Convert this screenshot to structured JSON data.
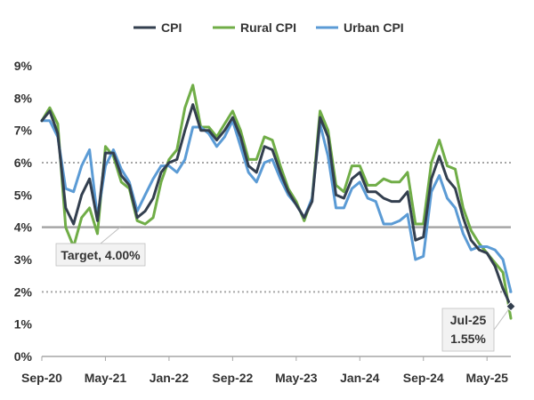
{
  "chart_data": {
    "type": "line",
    "title": "",
    "xlabel": "",
    "ylabel": "",
    "ylim": [
      0,
      9
    ],
    "y_ticks": [
      "0%",
      "1%",
      "2%",
      "3%",
      "4%",
      "5%",
      "6%",
      "7%",
      "8%",
      "9%"
    ],
    "x_tick_labels": [
      "Sep-20",
      "May-21",
      "Jan-22",
      "Sep-22",
      "May-23",
      "Jan-24",
      "Sep-24",
      "May-25"
    ],
    "x_tick_index": [
      0,
      8,
      16,
      24,
      32,
      40,
      48,
      56
    ],
    "legend": "top",
    "series": [
      {
        "name": "CPI",
        "color": "#333f4f",
        "values": [
          7.3,
          7.6,
          6.9,
          4.6,
          4.1,
          5.0,
          5.5,
          4.2,
          6.3,
          6.3,
          5.6,
          5.3,
          4.3,
          4.5,
          4.9,
          5.7,
          6.0,
          6.1,
          7.0,
          7.8,
          7.0,
          7.0,
          6.7,
          7.0,
          7.4,
          6.8,
          5.9,
          5.7,
          6.5,
          6.4,
          5.7,
          5.1,
          4.7,
          4.3,
          4.8,
          7.4,
          6.8,
          5.0,
          4.9,
          5.5,
          5.7,
          5.1,
          5.1,
          4.9,
          4.8,
          4.8,
          5.1,
          3.6,
          3.7,
          5.5,
          6.2,
          5.5,
          5.2,
          4.3,
          3.6,
          3.3,
          3.2,
          2.8,
          2.1,
          1.55
        ]
      },
      {
        "name": "Rural CPI",
        "color": "#70ad47",
        "values": [
          7.3,
          7.7,
          7.2,
          4.0,
          3.4,
          4.3,
          4.6,
          3.8,
          6.5,
          6.2,
          5.4,
          5.2,
          4.2,
          4.1,
          4.3,
          5.4,
          6.1,
          6.4,
          7.7,
          8.4,
          7.1,
          7.1,
          6.8,
          7.2,
          7.6,
          7.0,
          6.1,
          6.1,
          6.8,
          6.7,
          5.9,
          5.2,
          4.8,
          4.2,
          4.9,
          7.6,
          7.0,
          5.3,
          5.1,
          5.9,
          5.9,
          5.3,
          5.3,
          5.5,
          5.4,
          5.4,
          5.7,
          4.1,
          4.1,
          6.0,
          6.7,
          5.9,
          5.8,
          4.6,
          3.9,
          3.5,
          3.2,
          2.9,
          2.6,
          1.18
        ]
      },
      {
        "name": "Urban CPI",
        "color": "#5b9bd5",
        "values": [
          7.3,
          7.3,
          6.8,
          5.2,
          5.1,
          5.9,
          6.4,
          4.3,
          5.9,
          6.4,
          5.8,
          5.4,
          4.5,
          5.0,
          5.5,
          5.9,
          5.9,
          5.7,
          6.1,
          7.1,
          7.1,
          6.9,
          6.5,
          6.8,
          7.3,
          6.5,
          5.7,
          5.4,
          6.0,
          6.1,
          5.5,
          5.0,
          4.7,
          4.3,
          4.9,
          7.2,
          6.2,
          4.6,
          4.6,
          5.2,
          5.4,
          4.9,
          4.8,
          4.1,
          4.1,
          4.2,
          4.4,
          3.0,
          3.1,
          5.1,
          5.6,
          4.9,
          4.6,
          3.8,
          3.3,
          3.4,
          3.4,
          3.3,
          3.0,
          2.0
        ]
      }
    ],
    "reference_lines": [
      {
        "value": 4,
        "style": "solid",
        "color": "#a6a6a6"
      },
      {
        "value": 6,
        "style": "dotted",
        "color": "#a6a6a6"
      },
      {
        "value": 2,
        "style": "dotted",
        "color": "#a6a6a6"
      }
    ],
    "annotations": {
      "target": "Target, 4.00%",
      "latest_period": "Jul-25",
      "latest_value": "1.55%"
    }
  }
}
